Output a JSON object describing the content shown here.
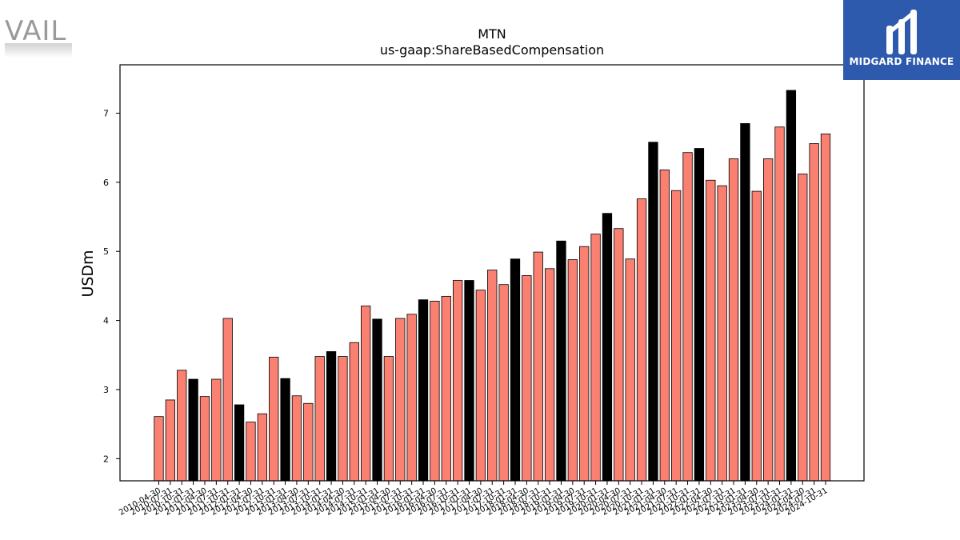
{
  "watermark": {
    "text": "VAIL"
  },
  "badge": {
    "text": "MIDGARD FINANCE",
    "bg": "#2e5aad"
  },
  "colors": {
    "normal": "#fa8072",
    "highlight": "#000000",
    "edge": "#000000"
  },
  "chart_data": {
    "type": "bar",
    "title": "MTN",
    "subtitle": "us-gaap:ShareBasedCompensation",
    "xlabel": "",
    "ylabel": "USDm",
    "ylim": [
      1.68,
      7.7
    ],
    "yticks": [
      2,
      3,
      4,
      5,
      6,
      7
    ],
    "grid": false,
    "legend": "none",
    "categories": [
      "2010-04-30",
      "2010-07-31",
      "2010-10-31",
      "2011-01-31",
      "2011-04-30",
      "2011-07-31",
      "2011-10-31",
      "2012-01-31",
      "2012-04-30",
      "2012-07-31",
      "2012-10-31",
      "2013-01-31",
      "2013-04-30",
      "2013-07-31",
      "2013-10-31",
      "2014-01-31",
      "2014-04-30",
      "2014-07-31",
      "2014-10-31",
      "2015-01-31",
      "2015-04-30",
      "2015-07-31",
      "2015-10-31",
      "2016-01-31",
      "2016-04-30",
      "2016-07-31",
      "2016-10-31",
      "2017-01-31",
      "2017-04-30",
      "2017-07-31",
      "2017-10-31",
      "2018-01-31",
      "2018-04-30",
      "2018-07-31",
      "2018-10-31",
      "2019-01-31",
      "2019-04-30",
      "2019-07-31",
      "2019-10-31",
      "2020-01-31",
      "2020-04-30",
      "2020-07-31",
      "2020-10-31",
      "2021-01-31",
      "2021-04-30",
      "2021-07-31",
      "2021-10-31",
      "2022-01-31",
      "2022-04-30",
      "2022-07-31",
      "2022-10-31",
      "2023-01-31",
      "2023-04-30",
      "2023-07-31",
      "2023-10-31",
      "2024-01-31",
      "2024-04-30",
      "2024-07-31",
      "2024-10-31"
    ],
    "values": [
      2.61,
      2.85,
      3.28,
      3.15,
      2.9,
      3.15,
      4.03,
      2.78,
      2.53,
      2.65,
      3.47,
      3.16,
      2.91,
      2.8,
      3.48,
      3.55,
      3.48,
      3.68,
      4.21,
      4.02,
      3.48,
      4.03,
      4.09,
      4.3,
      4.28,
      4.35,
      4.58,
      4.58,
      4.44,
      4.73,
      4.52,
      4.89,
      4.65,
      4.99,
      4.75,
      5.15,
      4.88,
      5.07,
      5.25,
      5.55,
      5.33,
      4.89,
      5.76,
      6.58,
      6.18,
      5.88,
      6.43,
      6.49,
      6.03,
      5.95,
      6.34,
      6.85,
      5.87,
      6.34,
      6.8,
      7.33,
      6.12,
      6.56,
      6.7
    ],
    "highlighted": [
      false,
      false,
      false,
      true,
      false,
      false,
      false,
      true,
      false,
      false,
      false,
      true,
      false,
      false,
      false,
      true,
      false,
      false,
      false,
      true,
      false,
      false,
      false,
      true,
      false,
      false,
      false,
      true,
      false,
      false,
      false,
      true,
      false,
      false,
      false,
      true,
      false,
      false,
      false,
      true,
      false,
      false,
      false,
      true,
      false,
      false,
      false,
      true,
      false,
      false,
      false,
      true,
      false,
      false,
      false,
      true,
      false,
      false,
      false
    ]
  }
}
